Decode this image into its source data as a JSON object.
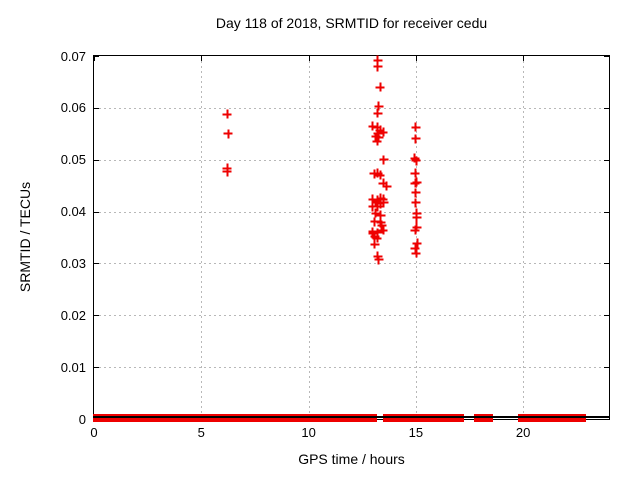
{
  "chart_data": {
    "type": "scatter",
    "title": "Day 118 of 2018, SRMTID for receiver cedu",
    "xlabel": "GPS time / hours",
    "ylabel": "SRMTID / TECUs",
    "xlim": [
      0,
      24
    ],
    "ylim": [
      0,
      0.07
    ],
    "x_ticks": [
      0,
      5,
      10,
      15,
      20
    ],
    "x_tick_labels": [
      "0",
      "5",
      "10",
      "15",
      "20"
    ],
    "y_ticks": [
      0,
      0.01,
      0.02,
      0.03,
      0.04,
      0.05,
      0.06,
      0.07
    ],
    "y_tick_labels": [
      "0",
      "0.01",
      "0.02",
      "0.03",
      "0.04",
      "0.05",
      "0.06",
      "0.07"
    ],
    "grid": true,
    "legend": "none",
    "marker": "plus",
    "marker_color": "#ee0000",
    "points": [
      [
        6.2,
        0.0588
      ],
      [
        6.25,
        0.055
      ],
      [
        6.2,
        0.0484
      ],
      [
        6.2,
        0.0477
      ],
      [
        13.23,
        0.0692
      ],
      [
        13.23,
        0.0679
      ],
      [
        13.33,
        0.064
      ],
      [
        13.28,
        0.0603
      ],
      [
        13.23,
        0.059
      ],
      [
        13.0,
        0.0565
      ],
      [
        13.19,
        0.0563
      ],
      [
        13.33,
        0.0557
      ],
      [
        13.47,
        0.0553
      ],
      [
        13.23,
        0.0551
      ],
      [
        13.14,
        0.0544
      ],
      [
        13.28,
        0.0542
      ],
      [
        13.19,
        0.0536
      ],
      [
        13.51,
        0.05
      ],
      [
        13.05,
        0.0473
      ],
      [
        13.23,
        0.0474
      ],
      [
        13.33,
        0.047
      ],
      [
        13.47,
        0.0455
      ],
      [
        13.65,
        0.0449
      ],
      [
        13.0,
        0.0424
      ],
      [
        13.19,
        0.0422
      ],
      [
        13.37,
        0.0426
      ],
      [
        13.47,
        0.0424
      ],
      [
        13.14,
        0.0417
      ],
      [
        13.33,
        0.0415
      ],
      [
        13.51,
        0.0417
      ],
      [
        13.0,
        0.0409
      ],
      [
        13.23,
        0.0409
      ],
      [
        13.14,
        0.0397
      ],
      [
        13.37,
        0.0393
      ],
      [
        13.09,
        0.038
      ],
      [
        13.37,
        0.0378
      ],
      [
        13.42,
        0.0374
      ],
      [
        13.47,
        0.0364
      ],
      [
        13.0,
        0.0361
      ],
      [
        13.23,
        0.0359
      ],
      [
        13.0,
        0.0357
      ],
      [
        13.09,
        0.0351
      ],
      [
        13.19,
        0.0349
      ],
      [
        13.09,
        0.0337
      ],
      [
        13.23,
        0.0314
      ],
      [
        13.28,
        0.0307
      ],
      [
        15.0,
        0.0563
      ],
      [
        15.0,
        0.054
      ],
      [
        14.95,
        0.0503
      ],
      [
        15.02,
        0.0498
      ],
      [
        14.98,
        0.0474
      ],
      [
        15.05,
        0.0457
      ],
      [
        14.98,
        0.0455
      ],
      [
        15.0,
        0.0436
      ],
      [
        15.0,
        0.0417
      ],
      [
        15.05,
        0.0397
      ],
      [
        15.05,
        0.0388
      ],
      [
        15.05,
        0.037
      ],
      [
        14.98,
        0.0364
      ],
      [
        15.07,
        0.0339
      ],
      [
        14.96,
        0.0328
      ],
      [
        15.02,
        0.032
      ]
    ],
    "zero_line_segments": [
      [
        0.0,
        13.1
      ],
      [
        13.52,
        14.91
      ],
      [
        15.05,
        17.15
      ],
      [
        17.78,
        17.95
      ],
      [
        18.1,
        18.26
      ],
      [
        18.36,
        18.52
      ],
      [
        19.84,
        19.96
      ],
      [
        20.05,
        22.88
      ]
    ]
  },
  "colors": {
    "background": "#ffffff",
    "frame": "#000000",
    "grid": "#b8b8b8",
    "marker": "#ee0000",
    "text": "#000000"
  }
}
